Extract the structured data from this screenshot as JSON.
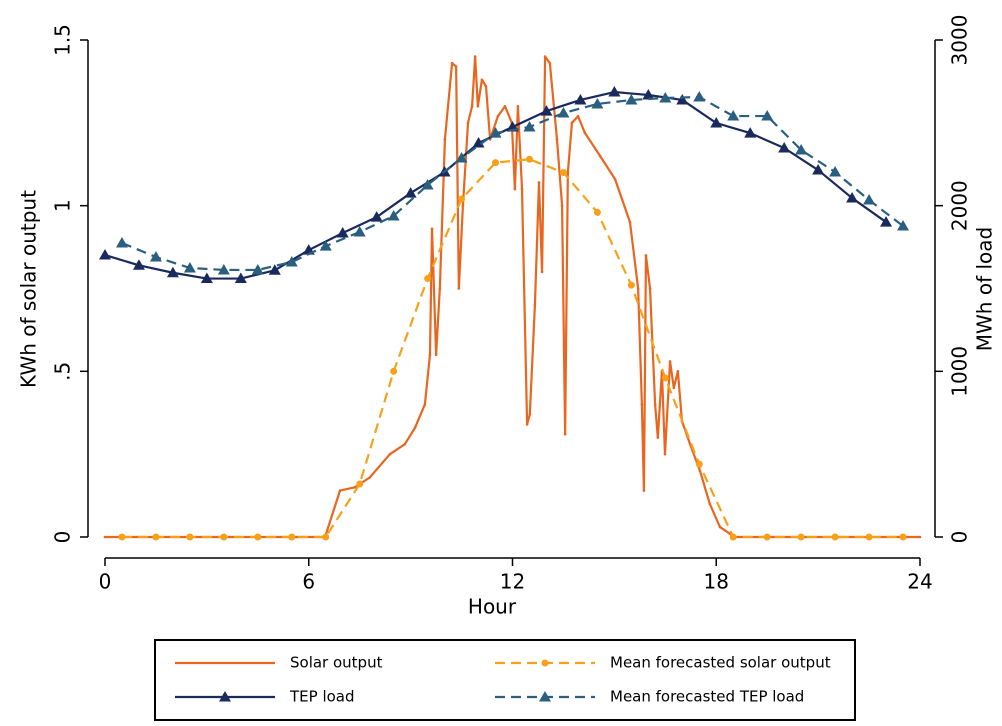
{
  "chart_data": {
    "type": "line",
    "x_label": "Hour",
    "y_label": "KWh of solar output",
    "y2_label": "MWh of load",
    "xlim": [
      0,
      24
    ],
    "xticks": [
      0,
      6,
      12,
      18,
      24
    ],
    "ylim": [
      0,
      1.5
    ],
    "yticks": [
      0,
      {
        "value": 0.5,
        "label": ".5"
      },
      1,
      1.5
    ],
    "y2lim": [
      0,
      3000
    ],
    "y2ticks": [
      0,
      1000,
      2000,
      3000
    ],
    "series": [
      {
        "name": "Solar output",
        "color": "#e8661f",
        "dash": "none",
        "marker": "dot",
        "x": [
          0,
          6.48,
          6.92,
          7.36,
          7.8,
          8.39,
          8.83,
          9.13,
          9.42,
          9.57,
          9.63,
          9.75,
          9.86,
          10.01,
          10.22,
          10.34,
          10.42,
          10.54,
          10.69,
          10.81,
          10.9,
          10.98,
          11.1,
          11.22,
          11.34,
          11.57,
          11.78,
          11.98,
          12.07,
          12.16,
          12.28,
          12.43,
          12.51,
          12.66,
          12.78,
          12.87,
          12.96,
          13.1,
          13.31,
          13.46,
          13.55,
          13.63,
          13.75,
          13.93,
          14.13,
          14.58,
          15.02,
          15.46,
          15.7,
          15.81,
          15.87,
          15.93,
          16.05,
          16.2,
          16.28,
          16.4,
          16.49,
          16.64,
          16.75,
          16.87,
          16.99,
          17.23,
          17.52,
          17.81,
          18.11,
          18.4,
          18.55,
          24
        ],
        "values": [
          0,
          0,
          0.14,
          0.15,
          0.18,
          0.25,
          0.28,
          0.33,
          0.4,
          0.55,
          0.93,
          0.55,
          0.75,
          1.2,
          1.43,
          1.42,
          0.75,
          1.0,
          1.25,
          1.3,
          1.45,
          1.3,
          1.38,
          1.36,
          1.2,
          1.27,
          1.3,
          1.25,
          1.05,
          1.3,
          1.05,
          0.34,
          0.37,
          0.7,
          1.07,
          0.8,
          1.45,
          1.43,
          1.2,
          1.0,
          0.31,
          1.1,
          1.25,
          1.27,
          1.22,
          1.15,
          1.08,
          0.95,
          0.75,
          0.4,
          0.14,
          0.85,
          0.75,
          0.4,
          0.3,
          0.5,
          0.25,
          0.53,
          0.45,
          0.5,
          0.35,
          0.28,
          0.2,
          0.1,
          0.03,
          0.01,
          0,
          0
        ]
      },
      {
        "name": "Mean forecasted solar output",
        "color": "#f7a11a",
        "dash": "10 6",
        "marker": "circle",
        "x": [
          0.5,
          1.5,
          2.5,
          3.5,
          4.5,
          5.5,
          6.5,
          7.5,
          8.5,
          9.5,
          10.5,
          11.5,
          12.5,
          13.5,
          14.5,
          15.5,
          16.5,
          17.5,
          18.5,
          19.5,
          20.5,
          21.5,
          22.5,
          23.5
        ],
        "values": [
          0,
          0,
          0,
          0,
          0,
          0,
          0,
          0.16,
          0.5,
          0.78,
          1.02,
          1.13,
          1.14,
          1.1,
          0.98,
          0.76,
          0.48,
          0.22,
          0,
          0,
          0,
          0,
          0,
          0
        ]
      },
      {
        "name": "TEP load",
        "color": "#1a2a5c",
        "dash": "none",
        "marker": "triangle",
        "axis": "y2",
        "x": [
          0,
          1,
          2,
          3,
          4,
          5,
          6,
          7,
          8,
          9,
          10,
          11,
          12,
          13,
          14,
          15,
          16,
          17,
          18,
          19,
          20,
          21,
          22,
          23
        ],
        "values": [
          1702,
          1640,
          1595,
          1560,
          1560,
          1610,
          1732,
          1835,
          1931,
          2076,
          2203,
          2378,
          2475,
          2571,
          2638,
          2686,
          2668,
          2638,
          2499,
          2438,
          2348,
          2215,
          2046,
          1901
        ]
      },
      {
        "name": "Mean forecasted TEP load",
        "color": "#2a5f80",
        "dash": "10 6",
        "marker": "triangle",
        "axis": "y2",
        "x": [
          0.5,
          1.5,
          2.5,
          3.5,
          4.5,
          5.5,
          6.5,
          7.5,
          8.5,
          9.5,
          10.5,
          11.5,
          12.5,
          13.5,
          14.5,
          15.5,
          16.5,
          17.5,
          18.5,
          19.5,
          20.5,
          21.5,
          22.5,
          23.5
        ],
        "values": [
          1775,
          1690,
          1624,
          1612,
          1612,
          1660,
          1756,
          1841,
          1938,
          2125,
          2288,
          2438,
          2475,
          2559,
          2614,
          2638,
          2650,
          2656,
          2541,
          2541,
          2336,
          2203,
          2034,
          1877
        ]
      }
    ]
  }
}
